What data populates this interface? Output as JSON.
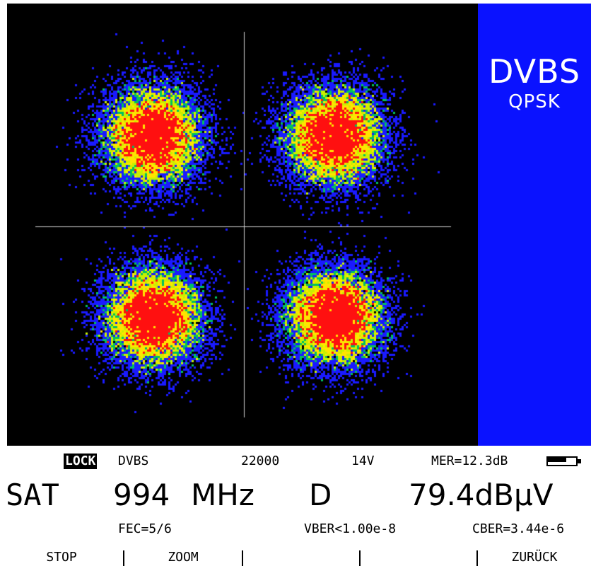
{
  "screen": {
    "mode_title": "DVBS",
    "modulation": "QPSK",
    "colors": {
      "plot_bg": "#000000",
      "side_panel": "#0a12ff",
      "crosshair": "#d0d0d0",
      "density_low": "#1a1aff",
      "density_mid_low": "#00c060",
      "density_mid": "#c8f000",
      "density_high": "#ffe400",
      "density_peak": "#ff1010"
    }
  },
  "status": {
    "lock_label": "LOCK",
    "standard": "DVBS",
    "symbol_rate": "22000",
    "lnb_voltage": "14V",
    "mer": "MER=12.3dB"
  },
  "readout": {
    "band": "SAT",
    "frequency": "994",
    "frequency_unit": "MHz",
    "d_label": "D",
    "level": "79.4dBμV"
  },
  "errors": {
    "fec": "FEC=5/6",
    "vber": "VBER<1.00e-8",
    "cber": "CBER=3.44e-6"
  },
  "softkeys": [
    "STOP",
    "ZOOM",
    "",
    "",
    "ZURÜCK"
  ],
  "battery_level": 0.65
}
